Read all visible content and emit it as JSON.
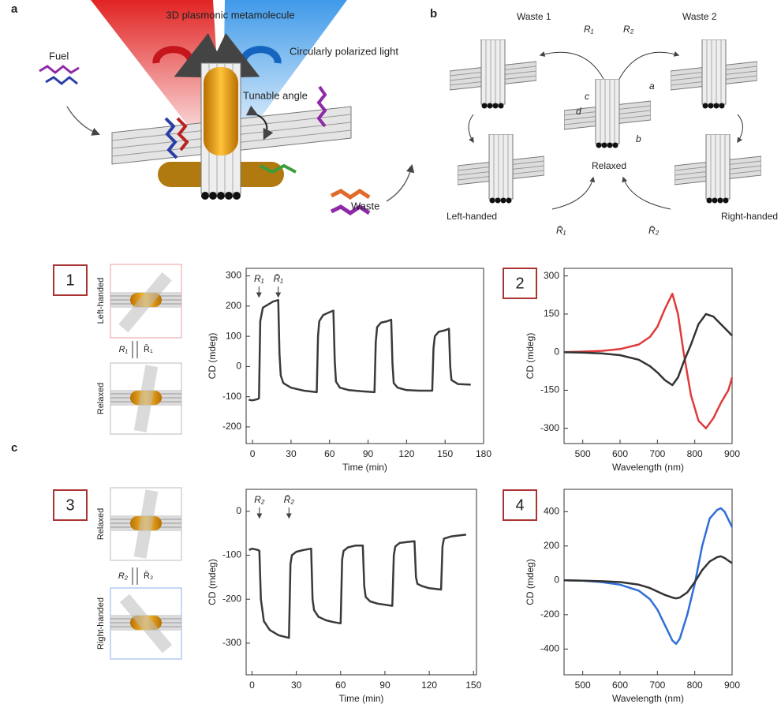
{
  "panel_letters": [
    "a",
    "b",
    "c"
  ],
  "panel_numbers": [
    "1",
    "2",
    "3",
    "4"
  ],
  "diagram_a": {
    "beam_label": "3D plasmonic metamolecule",
    "light_label": "Circularly polarized light",
    "fuel": "Fuel",
    "angle": "Tunable angle",
    "waste": "Waste"
  },
  "diagram_b": {
    "waste1": "Waste 1",
    "waste2": "Waste 2",
    "r1": "R₁",
    "r2": "R₂",
    "site_a": "a",
    "site_b": "b",
    "site_c": "c",
    "site_d": "d",
    "relaxed": "Relaxed",
    "left": "Left-handed",
    "right": "Right-handed",
    "r1_bar": "R̄₁",
    "r2_bar": "R̄₂"
  },
  "insets": [
    {
      "top": "Left-handed",
      "bottom": "Relaxed",
      "forward": "R₁",
      "backward": "R̄₁"
    },
    {
      "top": "Relaxed",
      "bottom": "Right-handed",
      "forward": "R₂",
      "backward": "R̄₂"
    }
  ],
  "chart_data": [
    {
      "type": "line",
      "x_label": "Time (min)",
      "y_label": "CD (mdeg)",
      "xlim": [
        -5,
        180
      ],
      "ylim": [
        -255,
        325
      ],
      "xticks": [
        0,
        30,
        60,
        90,
        120,
        150,
        180
      ],
      "yticks": [
        -200,
        -100,
        0,
        100,
        200,
        300
      ],
      "x": [
        -3,
        0,
        4,
        5,
        6,
        8,
        12,
        16,
        20,
        21,
        22,
        24,
        30,
        40,
        50,
        51,
        52,
        55,
        60,
        63,
        64,
        65,
        68,
        75,
        85,
        95,
        96,
        97,
        100,
        105,
        108,
        109,
        110,
        113,
        120,
        130,
        140,
        141,
        142,
        145,
        150,
        153,
        154,
        155,
        160,
        170
      ],
      "series": [
        {
          "color": "#3a3a3a",
          "values": [
            -110,
            -112,
            -108,
            -105,
            150,
            195,
            205,
            215,
            220,
            40,
            -30,
            -55,
            -70,
            -80,
            -85,
            100,
            150,
            170,
            180,
            185,
            20,
            -50,
            -70,
            -78,
            -82,
            -85,
            80,
            130,
            145,
            150,
            155,
            10,
            -55,
            -70,
            -78,
            -80,
            -80,
            60,
            100,
            115,
            120,
            125,
            0,
            -45,
            -58,
            -60
          ]
        }
      ],
      "annotations": [
        {
          "text": "R₁",
          "x": 5
        },
        {
          "text": "R̄₁",
          "x": 20
        }
      ]
    },
    {
      "type": "line",
      "x_label": "Wavelength (nm)",
      "y_label": "CD (mdeg)",
      "xlim": [
        450,
        900
      ],
      "ylim": [
        -360,
        330
      ],
      "xticks": [
        500,
        600,
        700,
        800,
        900
      ],
      "yticks": [
        -300,
        -150,
        0,
        150,
        300
      ],
      "x": [
        450,
        500,
        550,
        600,
        650,
        680,
        700,
        720,
        740,
        755,
        770,
        790,
        810,
        830,
        850,
        870,
        890,
        900
      ],
      "series": [
        {
          "color": "#e03a3a",
          "values": [
            0,
            2,
            5,
            12,
            30,
            60,
            100,
            170,
            230,
            150,
            0,
            -170,
            -270,
            -300,
            -260,
            -200,
            -150,
            -100
          ]
        },
        {
          "color": "#333333",
          "values": [
            0,
            -2,
            -5,
            -12,
            -30,
            -55,
            -80,
            -110,
            -130,
            -100,
            -40,
            30,
            110,
            150,
            140,
            110,
            80,
            65
          ]
        }
      ]
    },
    {
      "type": "line",
      "x_label": "Time (min)",
      "y_label": "CD (mdeg)",
      "xlim": [
        -4,
        152
      ],
      "ylim": [
        -372,
        50
      ],
      "xticks": [
        0,
        30,
        60,
        90,
        120,
        150
      ],
      "yticks": [
        -300,
        -200,
        -100,
        0
      ],
      "x": [
        -2,
        0,
        4,
        5,
        6,
        8,
        12,
        18,
        25,
        26,
        27,
        30,
        35,
        40,
        41,
        42,
        45,
        50,
        55,
        60,
        61,
        62,
        65,
        70,
        75,
        76,
        77,
        80,
        85,
        95,
        96,
        97,
        100,
        105,
        110,
        111,
        112,
        115,
        120,
        128,
        129,
        130,
        135,
        140,
        145
      ],
      "series": [
        {
          "color": "#3a3a3a",
          "values": [
            -88,
            -85,
            -88,
            -90,
            -200,
            -250,
            -270,
            -282,
            -288,
            -120,
            -100,
            -92,
            -88,
            -85,
            -200,
            -225,
            -240,
            -248,
            -252,
            -255,
            -110,
            -90,
            -82,
            -78,
            -78,
            -170,
            -195,
            -205,
            -210,
            -215,
            -100,
            -80,
            -72,
            -70,
            -68,
            -150,
            -165,
            -170,
            -175,
            -178,
            -80,
            -62,
            -57,
            -55,
            -53
          ]
        }
      ],
      "annotations": [
        {
          "text": "R₂",
          "x": 5
        },
        {
          "text": "R̄₂",
          "x": 25
        }
      ]
    },
    {
      "type": "line",
      "x_label": "Wavelength (nm)",
      "y_label": "CD (mdeg)",
      "xlim": [
        450,
        900
      ],
      "ylim": [
        -550,
        530
      ],
      "xticks": [
        500,
        600,
        700,
        800,
        900
      ],
      "yticks": [
        -400,
        -200,
        0,
        200,
        400
      ],
      "x": [
        450,
        500,
        550,
        600,
        650,
        680,
        700,
        720,
        740,
        750,
        760,
        780,
        800,
        820,
        840,
        860,
        870,
        880,
        900
      ],
      "series": [
        {
          "color": "#2f6fd6",
          "values": [
            0,
            -2,
            -10,
            -25,
            -60,
            -110,
            -170,
            -260,
            -350,
            -370,
            -340,
            -200,
            -20,
            200,
            360,
            410,
            420,
            400,
            310
          ]
        },
        {
          "color": "#333333",
          "values": [
            0,
            -2,
            -5,
            -10,
            -25,
            -45,
            -65,
            -85,
            -100,
            -105,
            -100,
            -70,
            -10,
            60,
            110,
            135,
            140,
            130,
            100
          ]
        }
      ]
    }
  ]
}
